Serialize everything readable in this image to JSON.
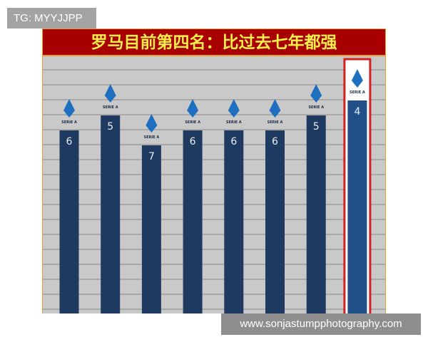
{
  "watermark_top": "TG: MYYJJPP",
  "watermark_bottom": "www.sonjastumpphotography.com",
  "chart_data": {
    "type": "bar",
    "title": "罗马目前第四名：比过去七年都强",
    "values": [
      6,
      5,
      7,
      6,
      6,
      6,
      5,
      4
    ],
    "logos": [
      "SERIE A TIM",
      "SERIE A",
      "SERIE A",
      "SERIE A TIM",
      "SERIE A",
      "SERIE A",
      "SERIE A",
      "SERIE A"
    ],
    "highlight_index": 7,
    "y_inverted": true,
    "grid": true,
    "colors": {
      "bar": "#1e3a60",
      "highlight_bar": "#1f4f86",
      "highlight_border": "#d42020",
      "title_bg": "#a80000",
      "title_text": "#f4ef4a",
      "logo": "#1e6fc0"
    }
  }
}
